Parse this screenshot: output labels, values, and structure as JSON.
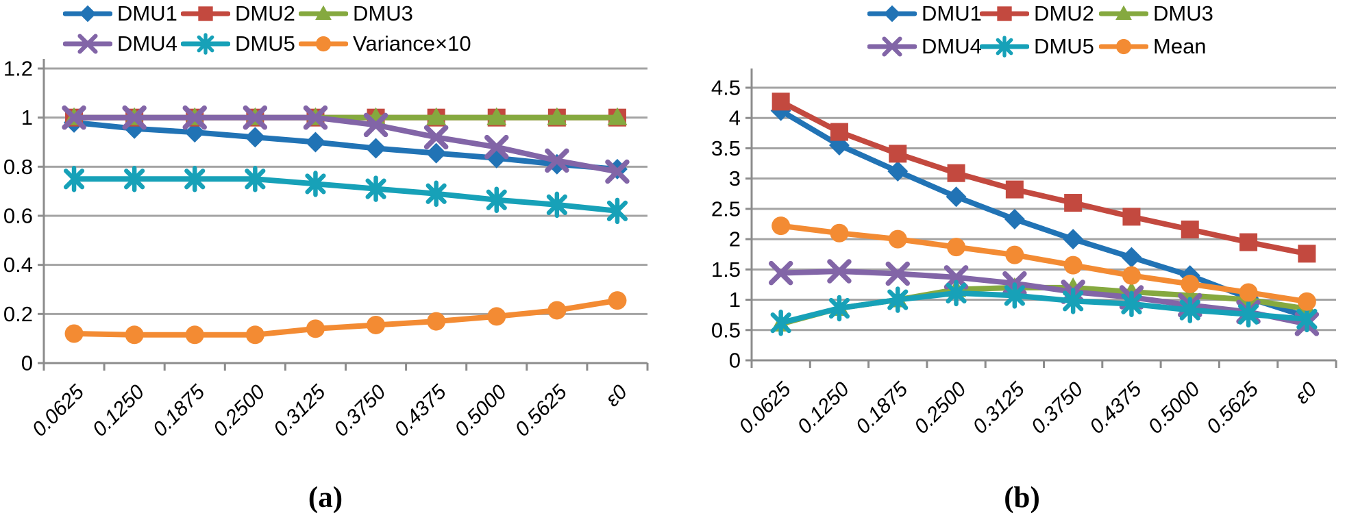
{
  "figure": {
    "caption_a": "(a)",
    "caption_b": "(b)"
  },
  "colors": {
    "dmu1_blue": "#2173B5",
    "dmu2_red": "#C3493F",
    "dmu3_green": "#85A93F",
    "dmu4_purple": "#8265A7",
    "dmu5_teal": "#17A1B8",
    "orange": "#F38B33",
    "gridline": "#A3A3A3",
    "axis": "#8C8C8C",
    "text": "#000000"
  },
  "chart_data": [
    {
      "id": "a",
      "type": "line",
      "title": "",
      "xlabel": "",
      "ylabel": "",
      "grid": true,
      "legend_position": "top",
      "categories": [
        "0.0625",
        "0.1250",
        "0.1875",
        "0.2500",
        "0.3125",
        "0.3750",
        "0.4375",
        "0.5000",
        "0.5625",
        "ε0"
      ],
      "ylim": [
        0,
        1.2
      ],
      "yticks": [
        "1.2",
        "1",
        "0.8",
        "0.6",
        "0.4",
        "0.2",
        "0"
      ],
      "series": [
        {
          "name": "DMU1",
          "marker": "diamond",
          "color": "#2173B5",
          "values": [
            0.98,
            0.955,
            0.94,
            0.92,
            0.9,
            0.875,
            0.855,
            0.835,
            0.81,
            0.79
          ]
        },
        {
          "name": "DMU2",
          "marker": "square",
          "color": "#C3493F",
          "values": [
            1,
            1,
            1,
            1,
            1,
            1,
            1,
            1,
            1,
            1
          ]
        },
        {
          "name": "DMU3",
          "marker": "triangle",
          "color": "#85A93F",
          "values": [
            1,
            1,
            1,
            1,
            1,
            1,
            1,
            1,
            1,
            1
          ]
        },
        {
          "name": "DMU4",
          "marker": "x",
          "color": "#8265A7",
          "values": [
            1,
            1,
            1,
            1,
            1,
            0.97,
            0.92,
            0.88,
            0.825,
            0.78
          ]
        },
        {
          "name": "DMU5",
          "marker": "asterisk",
          "color": "#17A1B8",
          "values": [
            0.75,
            0.75,
            0.75,
            0.75,
            0.73,
            0.71,
            0.69,
            0.665,
            0.645,
            0.62
          ]
        },
        {
          "name": "Variance×10",
          "marker": "circle",
          "color": "#F38B33",
          "values": [
            0.12,
            0.115,
            0.115,
            0.115,
            0.14,
            0.155,
            0.17,
            0.19,
            0.215,
            0.255
          ]
        }
      ]
    },
    {
      "id": "b",
      "type": "line",
      "title": "",
      "xlabel": "",
      "ylabel": "",
      "grid": true,
      "legend_position": "top",
      "categories": [
        "0.0625",
        "0.1250",
        "0.1875",
        "0.2500",
        "0.3125",
        "0.3750",
        "0.4375",
        "0.5000",
        "0.5625",
        "ε0"
      ],
      "ylim": [
        0,
        4.5
      ],
      "yticks": [
        "4.5",
        "4",
        "3.5",
        "3",
        "2.5",
        "2",
        "1.5",
        "1",
        "0.5",
        "0"
      ],
      "series": [
        {
          "name": "DMU1",
          "marker": "diamond",
          "color": "#2173B5",
          "values": [
            4.12,
            3.55,
            3.12,
            2.7,
            2.33,
            2.0,
            1.7,
            1.4,
            1.03,
            0.72
          ]
        },
        {
          "name": "DMU2",
          "marker": "square",
          "color": "#C3493F",
          "values": [
            4.27,
            3.77,
            3.41,
            3.09,
            2.82,
            2.6,
            2.37,
            2.16,
            1.95,
            1.76
          ]
        },
        {
          "name": "DMU3",
          "marker": "triangle",
          "color": "#85A93F",
          "values": [
            0.6,
            0.86,
            1.0,
            1.17,
            1.2,
            1.2,
            1.13,
            1.07,
            1.0,
            0.85
          ]
        },
        {
          "name": "DMU4",
          "marker": "x",
          "color": "#8265A7",
          "values": [
            1.44,
            1.47,
            1.43,
            1.37,
            1.27,
            1.13,
            1.04,
            0.91,
            0.8,
            0.6
          ]
        },
        {
          "name": "DMU5",
          "marker": "asterisk",
          "color": "#17A1B8",
          "values": [
            0.62,
            0.86,
            1.0,
            1.11,
            1.07,
            0.98,
            0.93,
            0.83,
            0.76,
            0.68
          ]
        },
        {
          "name": "Mean",
          "marker": "circle",
          "color": "#F38B33",
          "values": [
            2.22,
            2.1,
            2.0,
            1.87,
            1.74,
            1.57,
            1.4,
            1.26,
            1.12,
            0.97
          ]
        }
      ]
    }
  ]
}
